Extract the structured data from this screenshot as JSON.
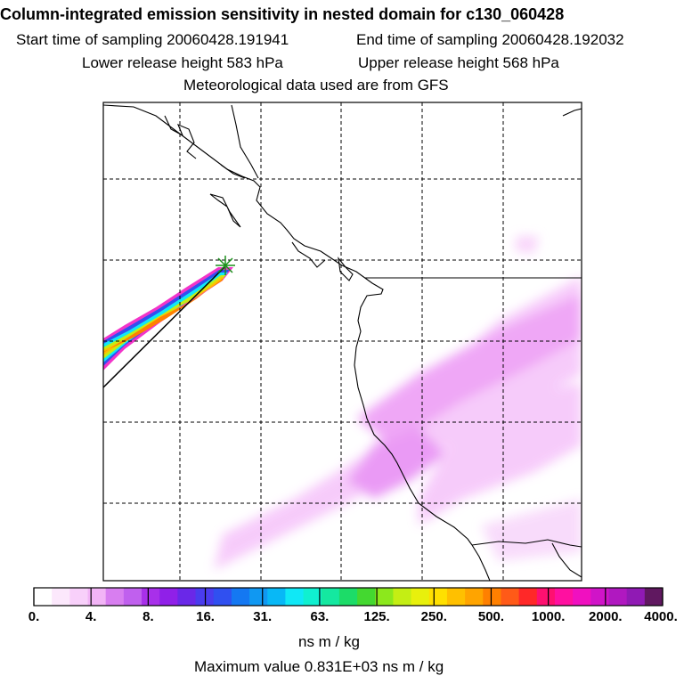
{
  "header": {
    "title": "Column-integrated emission sensitivity in nested domain for c130_060428",
    "start_label": "Start time of sampling 20060428.191941",
    "end_label": "End time of sampling 20060428.192032",
    "lower_label": "Lower release height  583 hPa",
    "upper_label": "Upper release height  568 hPa",
    "met_label": "Meteorological data used are from GFS"
  },
  "colorbar": {
    "tick_labels": [
      "0.",
      "4.",
      "8.",
      "16.",
      "31.",
      "63.",
      "125.",
      "250.",
      "500.",
      "1000.",
      "2000.",
      "4000."
    ],
    "colors": [
      "#ffffff",
      "#fce8fc",
      "#f8d0fa",
      "#f2b4f6",
      "#d87ef0",
      "#c060ee",
      "#a830ea",
      "#9020e8",
      "#6a28e8",
      "#4a3cee",
      "#3050f0",
      "#1478f2",
      "#1098f2",
      "#08b8f6",
      "#10e8f6",
      "#10f0d0",
      "#14e8a0",
      "#1cdc68",
      "#44d830",
      "#8ce81c",
      "#c4ee14",
      "#e8f00c",
      "#ffe000",
      "#ffc000",
      "#ffa400",
      "#ff8000",
      "#ff5a18",
      "#ff2828",
      "#ff1070",
      "#ff10a0",
      "#f010c0",
      "#d014c8",
      "#b018c0",
      "#901ab4",
      "#601860"
    ],
    "units_label": "ns m / kg"
  },
  "footer": {
    "max_value_label": "Maximum value  0.831E+03 ns m / kg"
  },
  "map": {
    "release_point_marker": "star-icon",
    "land_outline_color": "#000000",
    "plume_colors": [
      "#ff8000",
      "#ffc000",
      "#ffe000",
      "#c4ee14",
      "#14e8a0",
      "#10e8f6",
      "#1478f2",
      "#6a28e8",
      "#f010c0"
    ],
    "background_sensitivity_color": "#f3b0f7"
  }
}
